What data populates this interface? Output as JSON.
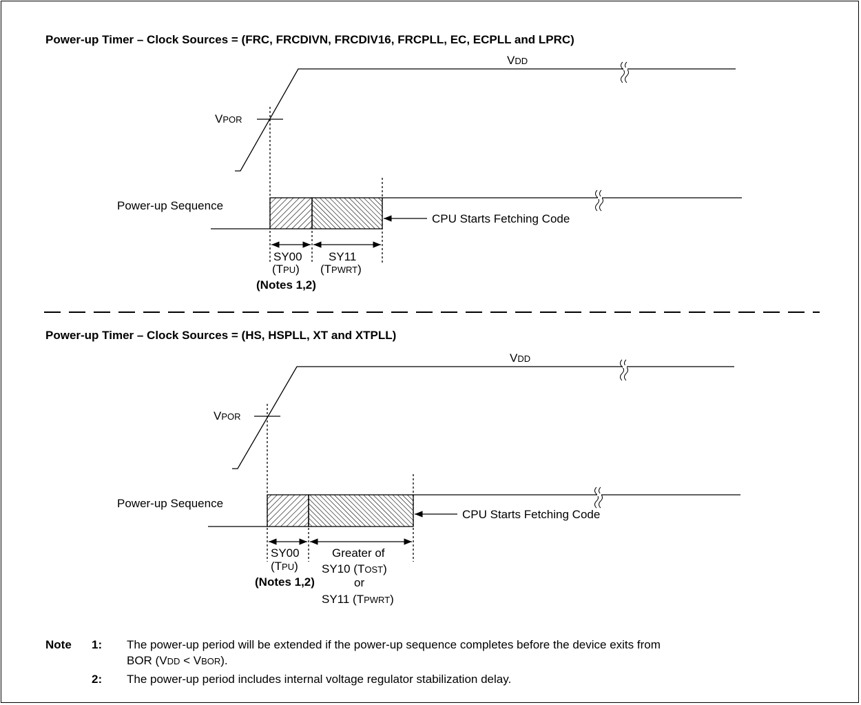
{
  "top": {
    "title": "Power-up Timer – Clock Sources = (FRC, FRCDIVN, FRCDIV16, FRCPLL, EC, ECPLL and LPRC)",
    "vdd_main": "V",
    "vdd_sub": "DD",
    "vpor_main": "V",
    "vpor_sub": "POR",
    "sequence_label": "Power-up Sequence",
    "cpu_label": "CPU Starts Fetching Code",
    "sy00": "SY00",
    "tpu_open": "(T",
    "tpu_sub": "PU",
    "tpu_close": ")",
    "sy11": "SY11",
    "tpwrt_open": "(T",
    "tpwrt_sub": "PWRT",
    "tpwrt_close": ")",
    "notes": "(Notes 1,2)"
  },
  "bottom": {
    "title": "Power-up Timer – Clock Sources = (HS, HSPLL, XT and XTPLL)",
    "vdd_main": "V",
    "vdd_sub": "DD",
    "vpor_main": "V",
    "vpor_sub": "POR",
    "sequence_label": "Power-up Sequence",
    "cpu_label": "CPU Starts Fetching Code",
    "sy00": "SY00",
    "tpu_open": "(T",
    "tpu_sub": "PU",
    "tpu_close": ")",
    "notes": "(Notes 1,2)",
    "greater_of": "Greater of",
    "sy10_prefix": "SY10 (T",
    "sy10_sub": "OST",
    "sy10_close": ")",
    "or": "or",
    "sy11_prefix": "SY11 (T",
    "sy11_sub": "PWRT",
    "sy11_close": ")"
  },
  "notes": {
    "note_word": "Note",
    "n1_num": "1:",
    "n1_line1": "The power-up period will be extended if the power-up sequence completes before the device exits from",
    "n1_line2_a": "BOR (V",
    "n1_line2_sub1": "DD",
    "n1_line2_b": " < V",
    "n1_line2_sub2": "BOR",
    "n1_line2_c": ").",
    "n2_num": "2:",
    "n2_text": "The power-up period includes internal voltage regulator stabilization delay."
  }
}
